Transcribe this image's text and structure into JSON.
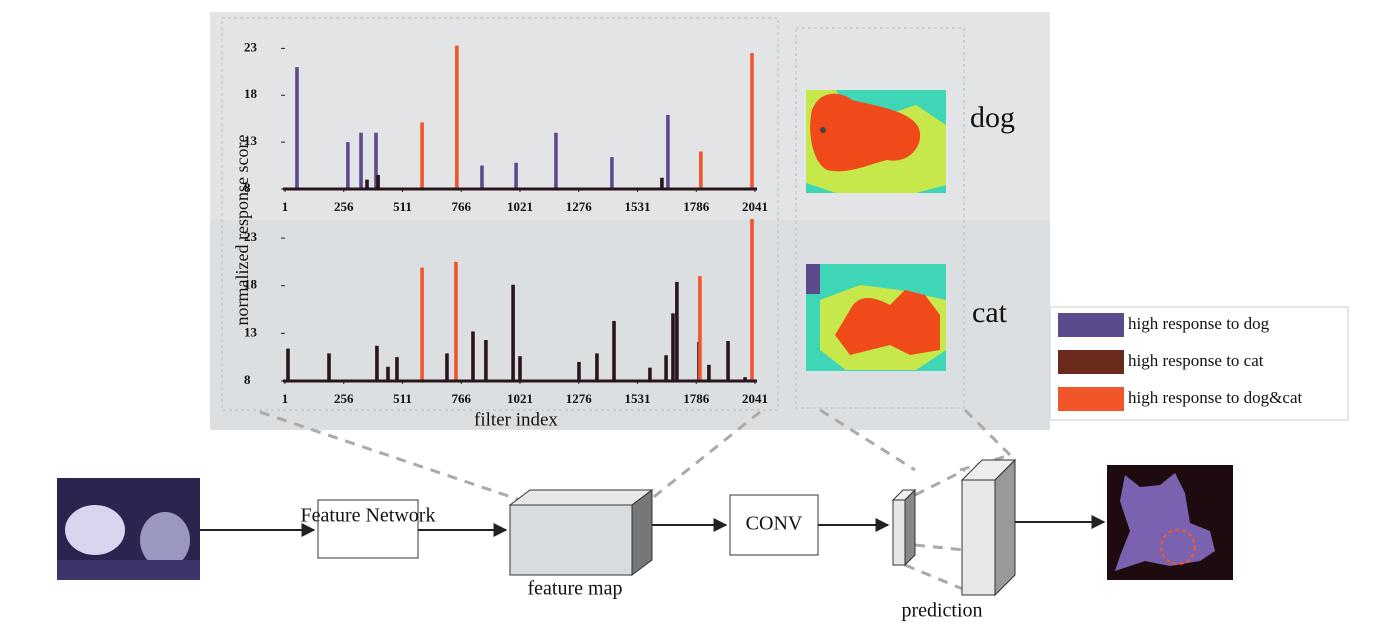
{
  "chart_data": [
    {
      "type": "bar",
      "xlim": [
        1,
        2041
      ],
      "xticks": [
        1,
        256,
        511,
        766,
        1021,
        1276,
        1531,
        1786,
        2041
      ],
      "ylim": [
        8,
        24
      ],
      "yticks": [
        8,
        13,
        18,
        23
      ],
      "y_label": "normalized response score",
      "series": [
        {
          "color": "#5b4b8c",
          "x": [
            53,
            274,
            331,
            396,
            856,
            1004,
            1177,
            1420,
            1663
          ],
          "values": [
            21,
            13,
            14,
            14,
            10.5,
            10.8,
            14,
            11.4,
            15.9
          ]
        },
        {
          "color": "#2a161a",
          "x": [
            357,
            405,
            1637
          ],
          "values": [
            9,
            9.5,
            9.2
          ]
        },
        {
          "color": "#f0562a",
          "x": [
            596,
            747,
            1806,
            2028
          ],
          "values": [
            15.1,
            23.3,
            12,
            22.5
          ]
        }
      ]
    },
    {
      "type": "bar",
      "xlim": [
        1,
        2041
      ],
      "xticks": [
        1,
        256,
        511,
        766,
        1021,
        1276,
        1531,
        1786,
        2041
      ],
      "ylim": [
        8,
        25
      ],
      "yticks": [
        8,
        13,
        18,
        23
      ],
      "x_label": "filter index",
      "series": [
        {
          "color": "#2a161a",
          "x": [
            14,
            192,
            400,
            448,
            487,
            704,
            817,
            873,
            991,
            1021,
            1277,
            1355,
            1429,
            1585,
            1655,
            1685,
            1702,
            1798,
            1841,
            1924,
            1998
          ],
          "values": [
            11.4,
            10.9,
            11.7,
            9.5,
            10.5,
            10.9,
            13.2,
            12.3,
            18.1,
            10.6,
            10,
            10.9,
            14.3,
            9.4,
            10.7,
            15.1,
            18.4,
            12.1,
            9.7,
            12.2,
            8.4
          ]
        },
        {
          "color": "#f0562a",
          "x": [
            596,
            743,
            1802,
            2028
          ],
          "values": [
            19.9,
            20.5,
            19,
            25
          ]
        }
      ]
    }
  ],
  "diagram": {
    "classes": [
      "dog",
      "cat"
    ],
    "legend": [
      {
        "label": "high response to dog",
        "color": "#5b4b8c"
      },
      {
        "label": "high response to cat",
        "color": "#6a2a1c"
      },
      {
        "label": "high response to dog&cat",
        "color": "#f0562a"
      }
    ],
    "nodes": [
      "Feature Network",
      "feature map",
      "CONV",
      "prediction"
    ]
  }
}
